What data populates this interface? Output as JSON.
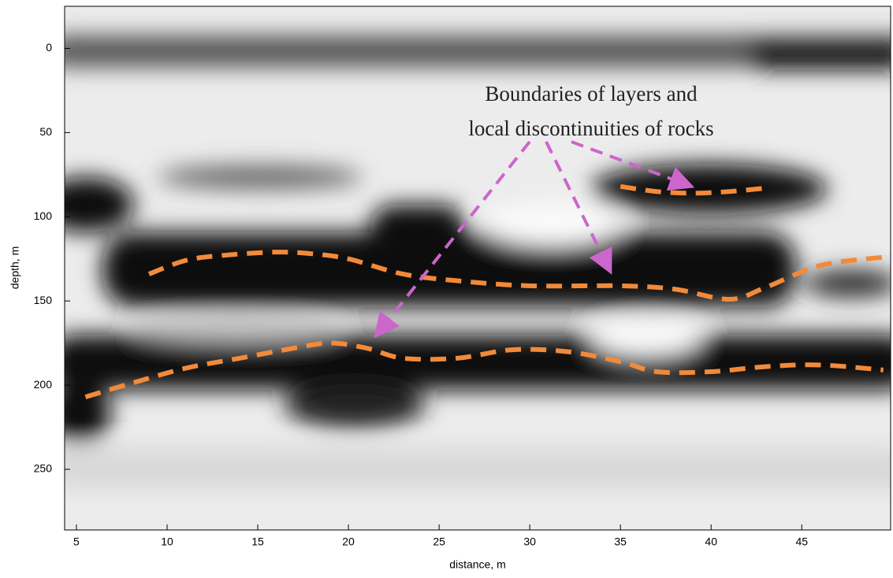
{
  "chart_data": {
    "type": "line",
    "xlabel": "distance, m",
    "ylabel": "depth, m",
    "annotation": [
      "Boundaries of layers and",
      "local discontinuities of rocks"
    ],
    "xlim": [
      4.35,
      49.9
    ],
    "xticks": [
      5,
      10,
      15,
      20,
      25,
      30,
      35,
      40,
      45
    ],
    "ylim": [
      -25,
      286
    ],
    "yticks": [
      0,
      50,
      100,
      150,
      200,
      250
    ],
    "y_inverted": true,
    "series": [
      {
        "color": "#f28a3a",
        "x": [
          35,
          37,
          39,
          41,
          43
        ],
        "values": [
          82,
          85,
          86,
          85,
          83
        ]
      },
      {
        "color": "#f28a3a",
        "x": [
          9,
          11,
          13,
          16,
          18,
          20,
          23,
          26,
          30,
          35,
          38,
          41,
          43,
          46,
          49.5
        ],
        "values": [
          134,
          126,
          123,
          121,
          122,
          125,
          134,
          138,
          141,
          141,
          143,
          149,
          142,
          129,
          124
        ]
      },
      {
        "color": "#f28a3a",
        "x": [
          5.5,
          8,
          11,
          14,
          17,
          19,
          21,
          23,
          26,
          29,
          32,
          35,
          37,
          40,
          43,
          46,
          49.5
        ],
        "values": [
          207,
          199,
          190,
          184,
          178,
          175,
          178,
          184,
          184,
          179,
          180,
          186,
          192,
          192,
          189,
          188,
          191
        ]
      }
    ]
  }
}
